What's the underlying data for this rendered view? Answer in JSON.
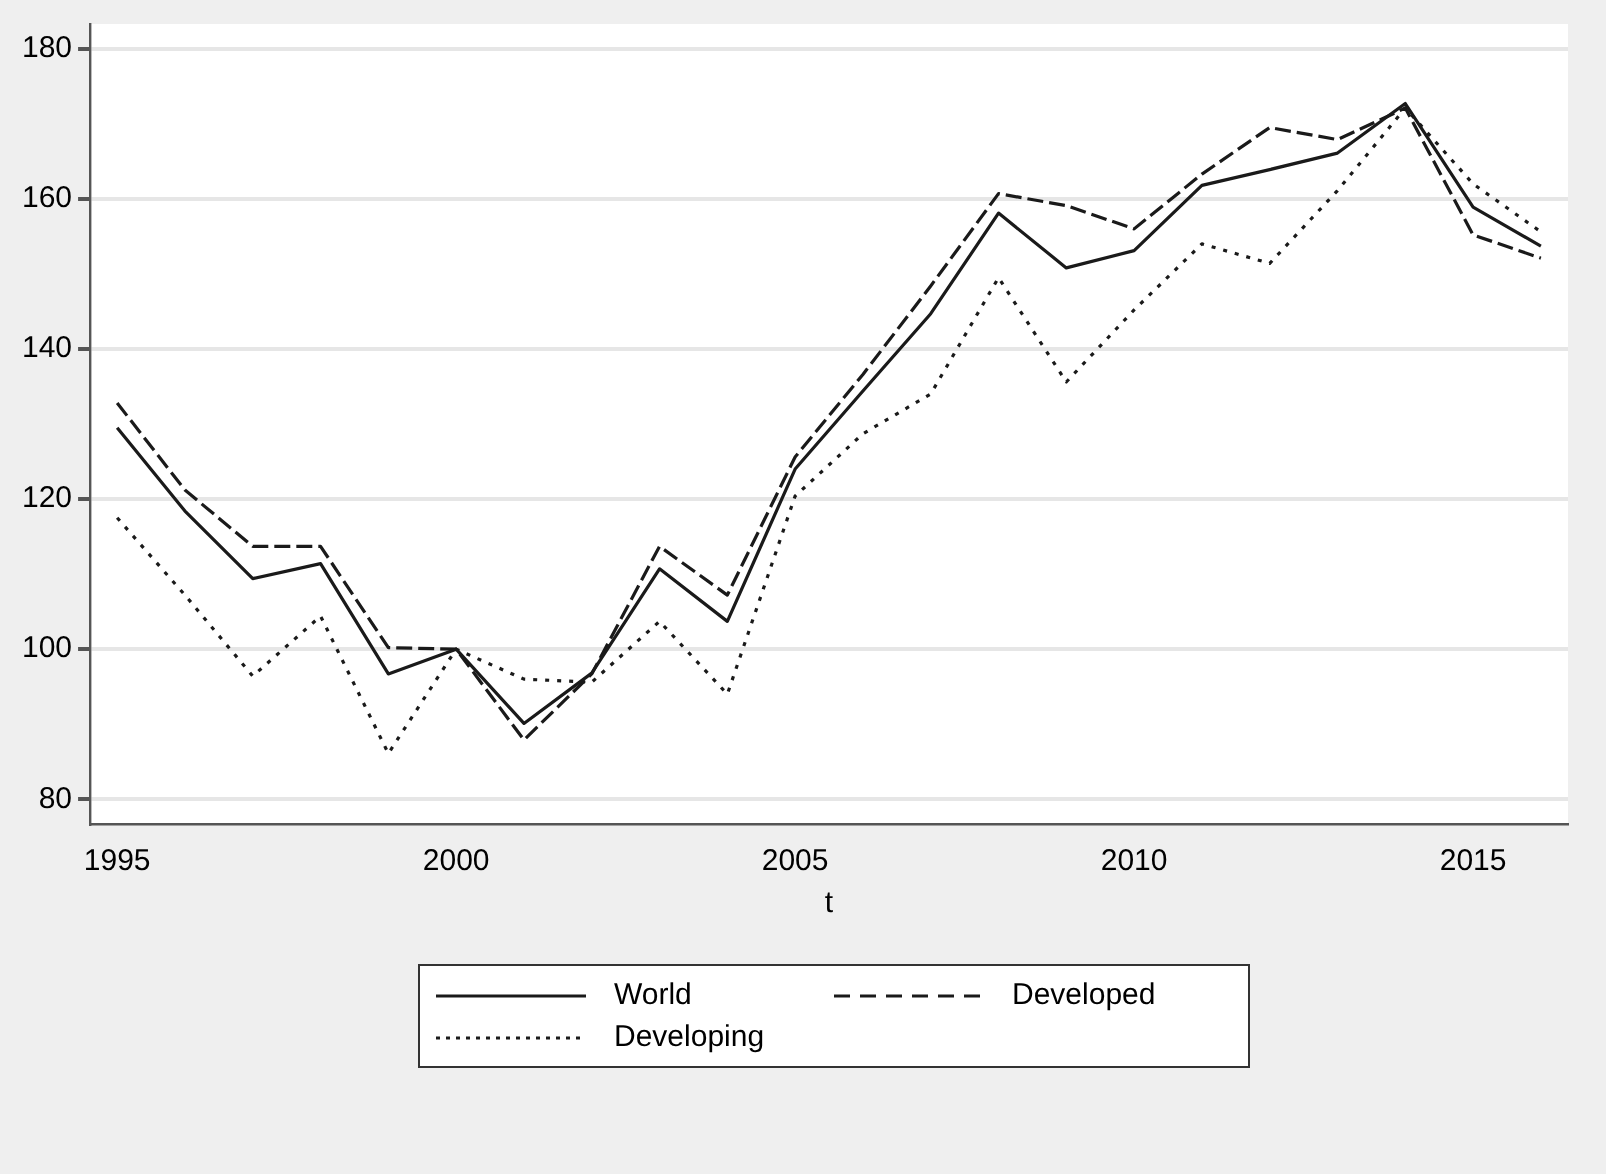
{
  "chart_data": {
    "type": "line",
    "xlabel": "t",
    "x": [
      1995,
      1996,
      1997,
      1998,
      1999,
      2000,
      2001,
      2002,
      2003,
      2004,
      2005,
      2006,
      2007,
      2008,
      2009,
      2010,
      2011,
      2012,
      2013,
      2014,
      2015,
      2016
    ],
    "series": [
      {
        "name": "World",
        "color": "#1a1a1a",
        "line_style": "solid",
        "values": [
          129.5,
          118.4,
          109.4,
          111.4,
          96.7,
          100,
          90.1,
          96.8,
          110.7,
          103.7,
          124,
          134.4,
          144.7,
          158.1,
          150.8,
          153.1,
          161.8,
          163.9,
          166.1,
          172.7,
          158.9,
          153.7
        ]
      },
      {
        "name": "Developed",
        "color": "#1a1a1a",
        "line_style": "dashed",
        "values": [
          132.8,
          121.2,
          113.7,
          113.7,
          100.2,
          100,
          87.9,
          96.7,
          113.7,
          107.2,
          125.6,
          136.6,
          148.4,
          160.7,
          159.1,
          156,
          163.3,
          169.5,
          167.9,
          172.1,
          155.2,
          152.1
        ]
      },
      {
        "name": "Developing",
        "color": "#1a1a1a",
        "line_style": "dotted",
        "values": [
          117.5,
          107.2,
          96.4,
          104.4,
          86.1,
          100,
          96,
          95.6,
          103.7,
          94,
          120.4,
          128.7,
          134,
          149.5,
          135.6,
          145.2,
          154,
          151.4,
          161.1,
          172.1,
          162,
          155.6
        ]
      }
    ],
    "xlim": [
      1994.6,
      2016.4
    ],
    "xticks": [
      1995,
      2000,
      2005,
      2010,
      2015
    ],
    "ylim": [
      76.7,
      183.3
    ],
    "yticks": [
      80,
      100,
      120,
      140,
      160,
      180
    ],
    "grid": "y",
    "legend": "bottom",
    "marker": "none"
  }
}
